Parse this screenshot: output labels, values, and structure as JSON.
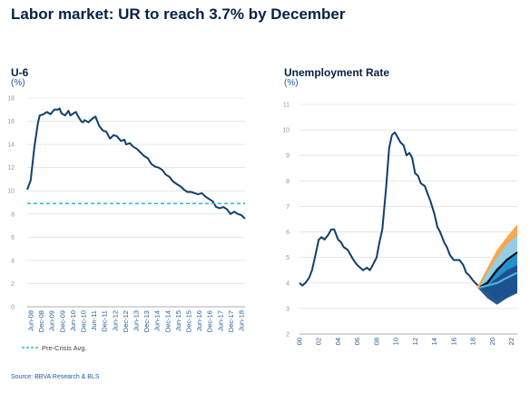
{
  "page": {
    "title": "Labor market: UR to reach 3.7% by December",
    "source": "Source: BBVA Research & BLS"
  },
  "chart_data": [
    {
      "type": "line",
      "title": "U-6",
      "unit": "(%)",
      "ylim": [
        0,
        18
      ],
      "yticks": [
        0,
        2,
        4,
        6,
        8,
        10,
        12,
        14,
        16,
        18
      ],
      "xlim": [
        2008.42,
        2018.5
      ],
      "xtick_labels": [
        "Jun-08",
        "Dec-08",
        "Jun-09",
        "Dec-09",
        "Jun-10",
        "Dec-10",
        "Jun-11",
        "Dec-11",
        "Jun-12",
        "Dec-12",
        "Jun-13",
        "Dec-13",
        "Jun-14",
        "Dec-14",
        "Jun-15",
        "Dec-15",
        "Jun-16",
        "Dec-16",
        "Jun-17",
        "Dec-17",
        "Jun-18"
      ],
      "grid": true,
      "series": [
        {
          "name": "",
          "color": "#0f3f6e",
          "x": [
            2008.42,
            2008.58,
            2008.75,
            2008.92,
            2009.0,
            2009.17,
            2009.33,
            2009.5,
            2009.67,
            2009.83,
            2009.92,
            2010.0,
            2010.17,
            2010.33,
            2010.42,
            2010.5,
            2010.67,
            2010.75,
            2010.92,
            2011.0,
            2011.08,
            2011.25,
            2011.42,
            2011.58,
            2011.75,
            2011.92,
            2012.08,
            2012.25,
            2012.42,
            2012.58,
            2012.75,
            2012.92,
            2013.0,
            2013.17,
            2013.33,
            2013.5,
            2013.67,
            2013.83,
            2014.0,
            2014.17,
            2014.33,
            2014.5,
            2014.67,
            2014.83,
            2015.0,
            2015.17,
            2015.33,
            2015.5,
            2015.67,
            2015.83,
            2016.0,
            2016.17,
            2016.33,
            2016.5,
            2016.67,
            2016.83,
            2017.0,
            2017.17,
            2017.33,
            2017.5,
            2017.67,
            2017.83,
            2018.0,
            2018.17,
            2018.33,
            2018.5
          ],
          "values": [
            10.1,
            10.9,
            13.8,
            15.9,
            16.5,
            16.6,
            16.8,
            16.6,
            17.0,
            17.0,
            17.1,
            16.7,
            16.5,
            16.9,
            16.5,
            16.6,
            16.8,
            16.5,
            16.0,
            15.9,
            16.1,
            15.9,
            16.2,
            16.4,
            15.6,
            15.2,
            15.1,
            14.5,
            14.8,
            14.7,
            14.3,
            14.4,
            14.0,
            14.1,
            13.8,
            13.6,
            13.3,
            13.0,
            12.8,
            12.3,
            12.1,
            12.0,
            11.8,
            11.4,
            11.2,
            10.8,
            10.6,
            10.4,
            10.1,
            9.9,
            9.9,
            9.8,
            9.7,
            9.8,
            9.5,
            9.3,
            9.1,
            8.6,
            8.5,
            8.6,
            8.4,
            8.0,
            8.2,
            8.0,
            7.9,
            7.6
          ]
        },
        {
          "name": "Pre-Crisis Avg.",
          "color": "#2ab7d6",
          "dashed": true,
          "x": [
            2008.42,
            2018.5
          ],
          "values": [
            8.9,
            8.9
          ]
        }
      ],
      "legend": [
        "Pre-Crisis Avg."
      ],
      "legend_position": "bottom-left"
    },
    {
      "type": "line",
      "title": "Unemployment Rate",
      "unit": "(%)",
      "ylim": [
        2,
        11
      ],
      "yticks": [
        2,
        3,
        4,
        5,
        6,
        7,
        8,
        9,
        10,
        11
      ],
      "xlim": [
        2000,
        2022.6
      ],
      "xtick_labels": [
        "00",
        "02",
        "04",
        "06",
        "08",
        "10",
        "12",
        "14",
        "16",
        "18",
        "20",
        "22"
      ],
      "xtick_values": [
        2000,
        2002,
        2004,
        2006,
        2008,
        2010,
        2012,
        2014,
        2016,
        2018,
        2020,
        2022
      ],
      "grid": true,
      "series": [
        {
          "name": "",
          "color": "#0f3f6e",
          "x": [
            2000.0,
            2000.3,
            2000.6,
            2001.0,
            2001.3,
            2001.6,
            2002.0,
            2002.3,
            2002.6,
            2003.0,
            2003.3,
            2003.6,
            2004.0,
            2004.3,
            2004.6,
            2005.0,
            2005.3,
            2005.6,
            2006.0,
            2006.3,
            2006.6,
            2007.0,
            2007.3,
            2007.6,
            2008.0,
            2008.3,
            2008.6,
            2009.0,
            2009.3,
            2009.6,
            2009.9,
            2010.2,
            2010.5,
            2010.8,
            2011.1,
            2011.4,
            2011.7,
            2012.0,
            2012.3,
            2012.6,
            2013.0,
            2013.3,
            2013.6,
            2014.0,
            2014.3,
            2014.6,
            2015.0,
            2015.3,
            2015.6,
            2016.0,
            2016.3,
            2016.6,
            2017.0,
            2017.3,
            2017.6,
            2018.0,
            2018.5
          ],
          "values": [
            4.0,
            3.9,
            4.0,
            4.2,
            4.5,
            5.0,
            5.7,
            5.8,
            5.7,
            5.9,
            6.1,
            6.1,
            5.7,
            5.6,
            5.4,
            5.3,
            5.1,
            4.9,
            4.7,
            4.6,
            4.5,
            4.6,
            4.5,
            4.7,
            5.0,
            5.6,
            6.1,
            7.8,
            9.3,
            9.8,
            9.9,
            9.7,
            9.5,
            9.4,
            9.0,
            9.1,
            8.9,
            8.3,
            8.2,
            7.9,
            7.8,
            7.5,
            7.2,
            6.7,
            6.2,
            6.0,
            5.6,
            5.4,
            5.1,
            4.9,
            4.9,
            4.9,
            4.7,
            4.4,
            4.3,
            4.1,
            3.9
          ]
        }
      ],
      "forecast_fan": {
        "x_start": 2018.5,
        "x_end": 2022.6,
        "start_value": 3.8,
        "colors": [
          "#1b4f8a",
          "#1f8ecf",
          "#4fb3e0",
          "#8ed0ec",
          "#f5a54a",
          "#111111"
        ],
        "bands": [
          {
            "color": "#f5a54a",
            "x": [
              2018.5,
              2019.5,
              2020.5,
              2021.5,
              2022.6
            ],
            "upper": [
              3.8,
              4.6,
              5.3,
              5.8,
              6.3
            ],
            "lower": [
              3.8,
              3.9,
              3.5,
              3.6,
              4.0
            ]
          },
          {
            "color": "#8ed0ec",
            "x": [
              2018.5,
              2019.5,
              2020.5,
              2021.5,
              2022.6
            ],
            "upper": [
              3.8,
              4.4,
              5.0,
              5.5,
              5.9
            ],
            "lower": [
              3.8,
              3.8,
              3.4,
              3.5,
              3.9
            ]
          },
          {
            "color": "#1f8ecf",
            "x": [
              2018.5,
              2019.5,
              2020.5,
              2021.5,
              2022.6
            ],
            "upper": [
              3.8,
              4.1,
              4.6,
              4.9,
              5.2
            ],
            "lower": [
              3.8,
              3.6,
              3.3,
              3.4,
              3.7
            ]
          },
          {
            "color": "#1b4f8a",
            "x": [
              2018.5,
              2019.5,
              2020.5,
              2021.5,
              2022.6
            ],
            "upper": [
              3.8,
              3.9,
              4.2,
              4.5,
              4.7
            ],
            "lower": [
              3.8,
              3.4,
              3.15,
              3.4,
              3.6
            ]
          }
        ],
        "lines": [
          {
            "color": "#111111",
            "x": [
              2018.5,
              2019.5,
              2020.5,
              2021.5,
              2022.6
            ],
            "values": [
              3.8,
              4.0,
              4.5,
              4.9,
              5.2
            ]
          },
          {
            "color": "#4fb3e0",
            "x": [
              2018.5,
              2019.5,
              2020.5,
              2021.5,
              2022.6
            ],
            "values": [
              3.8,
              3.9,
              4.0,
              4.2,
              4.4
            ]
          },
          {
            "color": "#f5a54a",
            "x": [
              2018.5,
              2019.5,
              2020.5,
              2021.5,
              2022.6
            ],
            "values": [
              3.8,
              4.5,
              5.1,
              5.6,
              5.9
            ]
          }
        ]
      }
    }
  ]
}
